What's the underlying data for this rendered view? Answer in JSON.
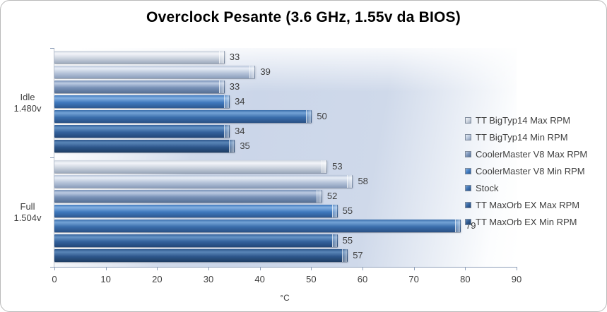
{
  "chart_data": {
    "type": "bar",
    "orientation": "horizontal",
    "title": "Overclock Pesante (3.6 GHz, 1.55v da BIOS)",
    "xlabel": "°C",
    "xlim": [
      0,
      90
    ],
    "xticks": [
      0,
      10,
      20,
      30,
      40,
      50,
      60,
      70,
      80,
      90
    ],
    "grid": false,
    "legend_position": "right",
    "categories": [
      {
        "lines": [
          "Idle",
          "1.480v"
        ]
      },
      {
        "lines": [
          "Full",
          "1.504v"
        ]
      }
    ],
    "series": [
      {
        "name": "TT BigTyp14 Max RPM",
        "values": [
          33,
          53
        ],
        "colors": {
          "light": "#f3f5f9",
          "base": "#ccd4df",
          "dark": "#9ca9bc"
        }
      },
      {
        "name": "TT BigTyp14 Min RPM",
        "values": [
          39,
          58
        ],
        "colors": {
          "light": "#e7edf6",
          "base": "#b7c5da",
          "dark": "#8a9dbb"
        }
      },
      {
        "name": "CoolerMaster V8 Max RPM",
        "values": [
          33,
          52
        ],
        "colors": {
          "light": "#bccbe2",
          "base": "#7690b6",
          "dark": "#566f94"
        }
      },
      {
        "name": "CoolerMaster V8 Min RPM",
        "values": [
          34,
          55
        ],
        "colors": {
          "light": "#85b1e2",
          "base": "#3e78bd",
          "dark": "#2d5890"
        }
      },
      {
        "name": "Stock",
        "values": [
          50,
          79
        ],
        "colors": {
          "light": "#74a3d6",
          "base": "#3a6dab",
          "dark": "#295085"
        }
      },
      {
        "name": "TT MaxOrb EX Max RPM",
        "values": [
          34,
          55
        ],
        "colors": {
          "light": "#6694c6",
          "base": "#33619c",
          "dark": "#234678"
        }
      },
      {
        "name": "TT MaxOrb EX Min RPM",
        "values": [
          35,
          57
        ],
        "colors": {
          "light": "#5a86b8",
          "base": "#2d568b",
          "dark": "#1e3d64"
        }
      }
    ]
  }
}
